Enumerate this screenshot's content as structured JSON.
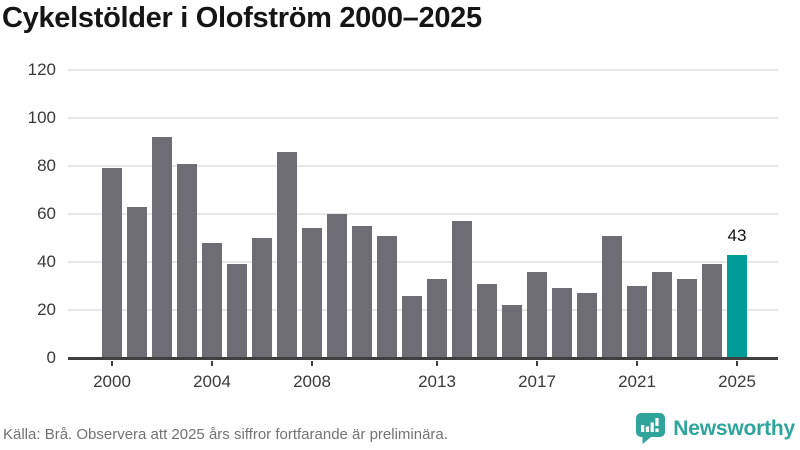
{
  "title": "Cykelstölder i Olofström 2000–2025",
  "footer": {
    "source_note": "Källa: Brå. Observera att 2025 års siffror fortfarande är preliminära.",
    "brand": "Newsworthy"
  },
  "icons": {
    "brand_icon": "speech-bubble-bar-chart-icon"
  },
  "colors": {
    "bar_default": "#6e6d73",
    "bar_highlight": "#009c98",
    "brand_teal": "#2ea49b",
    "gridline": "#e7e7e7",
    "axis": "#3f3f3f",
    "title_text": "#151515",
    "tick_text": "#3a3a3a",
    "footer_text": "#727272",
    "value_label_text": "#111111"
  },
  "chart_data": {
    "type": "bar",
    "title": "Cykelstölder i Olofström 2000–2025",
    "categories": [
      "2000",
      "2001",
      "2002",
      "2003",
      "2004",
      "2005",
      "2006",
      "2007",
      "2008",
      "2009",
      "2010",
      "2011",
      "2012",
      "2013",
      "2014",
      "2015",
      "2016",
      "2017",
      "2018",
      "2019",
      "2020",
      "2021",
      "2022",
      "2023",
      "2024",
      "2025"
    ],
    "values": [
      79,
      63,
      92,
      81,
      48,
      39,
      50,
      86,
      54,
      60,
      55,
      51,
      26,
      33,
      57,
      31,
      22,
      36,
      29,
      27,
      51,
      30,
      36,
      33,
      39,
      43
    ],
    "highlight": {
      "category": "2025",
      "value": 43,
      "label": "43"
    },
    "x_tick_labels": [
      "2000",
      "2004",
      "2008",
      "2013",
      "2017",
      "2021",
      "2025"
    ],
    "y_ticks": [
      0,
      20,
      40,
      60,
      80,
      100,
      120
    ],
    "ylim": [
      0,
      120
    ],
    "xlabel": "",
    "ylabel": "",
    "grid": true,
    "legend": "none"
  }
}
